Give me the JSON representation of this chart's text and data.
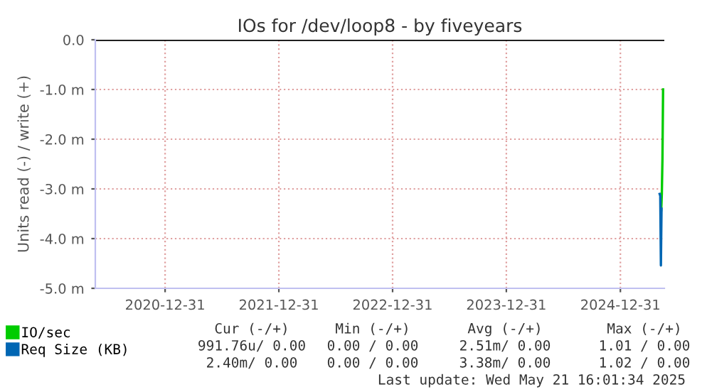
{
  "chart_data": {
    "type": "line",
    "title": "IOs for /dev/loop8 - by fiveyears",
    "ylabel": "Units read (-) / write (+)",
    "xlim": [
      "2020-05-21",
      "2025-05-21"
    ],
    "xticks": [
      {
        "value": "2020-12-31",
        "label": "2020-12-31"
      },
      {
        "value": "2021-12-31",
        "label": "2021-12-31"
      },
      {
        "value": "2022-12-31",
        "label": "2022-12-31"
      },
      {
        "value": "2023-12-31",
        "label": "2023-12-31"
      },
      {
        "value": "2024-12-31",
        "label": "2024-12-31"
      }
    ],
    "ylim": [
      -5.0,
      0.0
    ],
    "yticks": [
      {
        "value": 0.0,
        "label": "0.0"
      },
      {
        "value": -1.0,
        "label": "-1.0 m"
      },
      {
        "value": -2.0,
        "label": "-2.0 m"
      },
      {
        "value": -3.0,
        "label": "-3.0 m"
      },
      {
        "value": -4.0,
        "label": "-4.0 m"
      },
      {
        "value": -5.0,
        "label": "-5.0 m"
      }
    ],
    "grid": true,
    "legend": "bottom left",
    "ref_lines": [
      {
        "axis": "y",
        "value": 0.0,
        "color": "#000000"
      }
    ],
    "series": [
      {
        "name": "IO/sec",
        "color": "#00cc00",
        "x": [
          "2025-05-11",
          "2025-05-13",
          "2025-05-15",
          "2025-05-17"
        ],
        "values": [
          -3.43,
          -3.1,
          -2.4,
          -1.0
        ]
      },
      {
        "name": "Req Size (KB)",
        "color": "#0066b3",
        "x": [
          "2025-05-06",
          "2025-05-08",
          "2025-05-10",
          "2025-05-12"
        ],
        "values": [
          -3.1,
          -3.14,
          -4.54,
          -3.4
        ]
      }
    ],
    "annotations": [
      "Cur (-/+)",
      "Min (-/+)",
      "Avg (-/+)",
      "Max (-/+)",
      "991.76u/ 0.00",
      "0.00 / 0.00",
      "2.51m/ 0.00",
      "1.01 / 0.00",
      "2.40m/ 0.00",
      "0.00 / 0.00",
      "3.38m/ 0.00",
      "1.02 / 0.00",
      "Last update: Wed May 21 16:01:34 2025"
    ]
  }
}
